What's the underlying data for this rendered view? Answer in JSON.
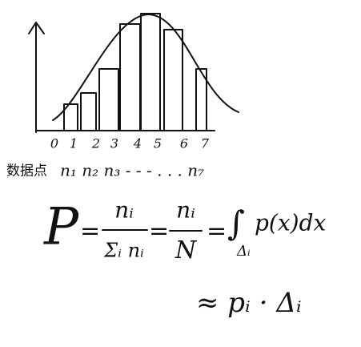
{
  "axis_labels": [
    "0",
    "1",
    "2",
    "3",
    "4",
    "5",
    "6",
    "7"
  ],
  "data_label": "数据点",
  "counts": "n₁ n₂ n₃ - - - . . . n₇",
  "formula": {
    "lhs": "P",
    "eq1": "=",
    "frac1_num": "nᵢ",
    "frac1_den": "Σᵢ nᵢ",
    "eq2": "=",
    "frac2_num": "nᵢ",
    "frac2_den": "N",
    "eq3": "=",
    "integral": "∫",
    "integral_sub": "Δᵢ",
    "integrand": "p(x)dx",
    "approx": "≈ pᵢ · Δᵢ"
  }
}
